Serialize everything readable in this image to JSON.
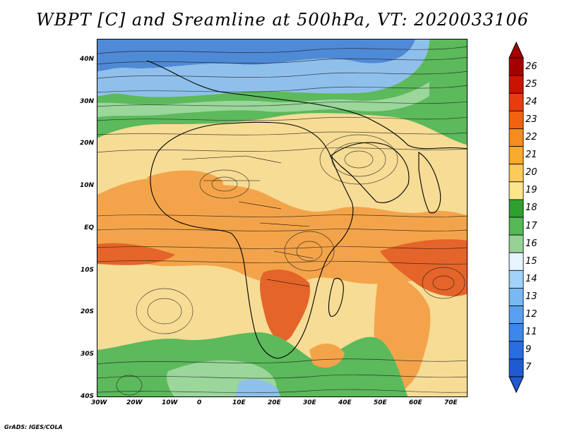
{
  "title": "WBPT [C] and Sreamline at 500hPa, VT: 2020033106",
  "footer": "GrADS: IGES/COLA",
  "map": {
    "lat_range": [
      -40,
      45
    ],
    "lon_range": [
      -30,
      75
    ],
    "lat_ticks": [
      {
        "value": 40,
        "label": "40N"
      },
      {
        "value": 30,
        "label": "30N"
      },
      {
        "value": 20,
        "label": "20N"
      },
      {
        "value": 10,
        "label": "10N"
      },
      {
        "value": 0,
        "label": "EQ"
      },
      {
        "value": -10,
        "label": "10S"
      },
      {
        "value": -20,
        "label": "20S"
      },
      {
        "value": -30,
        "label": "30S"
      },
      {
        "value": -40,
        "label": "40S"
      }
    ],
    "lon_ticks": [
      {
        "value": -30,
        "label": "30W"
      },
      {
        "value": -20,
        "label": "20W"
      },
      {
        "value": -10,
        "label": "10W"
      },
      {
        "value": 0,
        "label": "0"
      },
      {
        "value": 10,
        "label": "10E"
      },
      {
        "value": 20,
        "label": "20E"
      },
      {
        "value": 30,
        "label": "30E"
      },
      {
        "value": 40,
        "label": "40E"
      },
      {
        "value": 50,
        "label": "50E"
      },
      {
        "value": 60,
        "label": "60E"
      },
      {
        "value": 70,
        "label": "70E"
      }
    ]
  },
  "colorbar": {
    "labels": [
      "26",
      "25",
      "24",
      "23",
      "22",
      "21",
      "20",
      "19",
      "18",
      "17",
      "16",
      "15",
      "14",
      "13",
      "12",
      "11",
      "9",
      "7"
    ],
    "colors": [
      "#a50000",
      "#c81400",
      "#e63c0f",
      "#f0640f",
      "#f58c1e",
      "#faaa2d",
      "#fcca5a",
      "#fce68c",
      "#2da02d",
      "#55b955",
      "#96d296",
      "#e6f5ff",
      "#a0d2fa",
      "#78b9f5",
      "#5aa0f0",
      "#3c87eb",
      "#286ee1",
      "#1e5ad2"
    ]
  },
  "colors": {
    "cold": "#4f8ad6",
    "cool": "#8fc0ec",
    "green": "#5cb95c",
    "light_green": "#9bd69b",
    "tan": "#f7dc96",
    "orange": "#f3a44a",
    "red": "#e5642a"
  }
}
